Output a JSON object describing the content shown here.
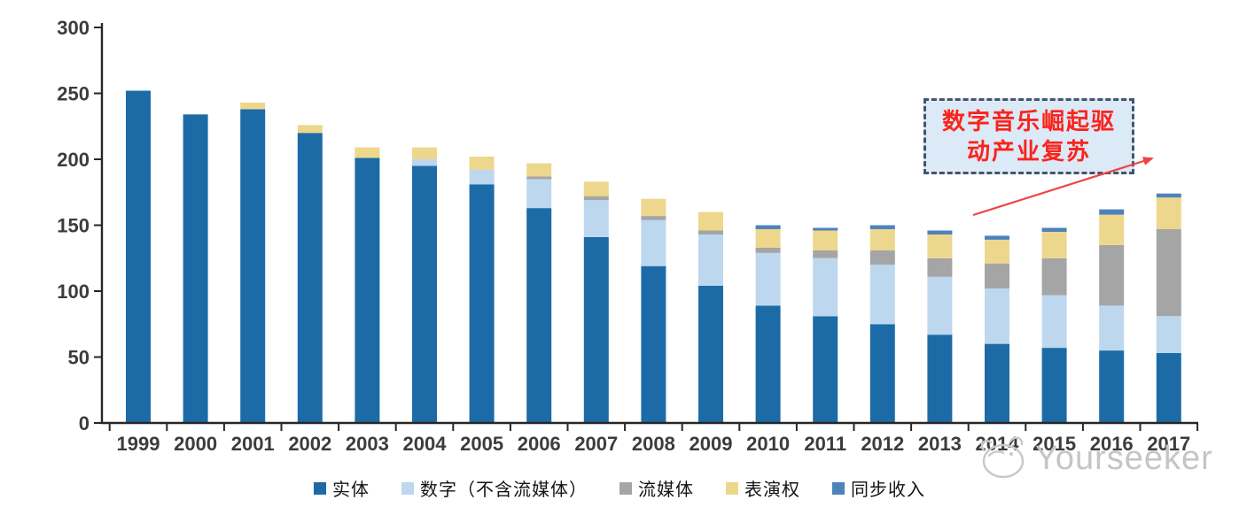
{
  "chart_data": {
    "type": "bar",
    "stacked": true,
    "title": "",
    "xlabel": "",
    "ylabel": "",
    "ylim": [
      0,
      300
    ],
    "yticks": [
      0,
      50,
      100,
      150,
      200,
      250,
      300
    ],
    "grid": false,
    "legend_position": "bottom",
    "categories": [
      "1999",
      "2000",
      "2001",
      "2002",
      "2003",
      "2004",
      "2005",
      "2006",
      "2007",
      "2008",
      "2009",
      "2010",
      "2011",
      "2012",
      "2013",
      "2014",
      "2015",
      "2016",
      "2017"
    ],
    "series": [
      {
        "name": "实体",
        "color": "#1C6BA6",
        "values": [
          252,
          234,
          238,
          220,
          201,
          195,
          181,
          163,
          141,
          119,
          104,
          89,
          81,
          75,
          67,
          60,
          57,
          55,
          53
        ]
      },
      {
        "name": "数字（不含流媒体）",
        "color": "#BDD7EE",
        "values": [
          0,
          0,
          0,
          0,
          0,
          5,
          11,
          22,
          28,
          35,
          39,
          40,
          44,
          45,
          44,
          42,
          40,
          34,
          28
        ]
      },
      {
        "name": "流媒体",
        "color": "#A5A5A5",
        "values": [
          0,
          0,
          0,
          0,
          0,
          0,
          0,
          2,
          3,
          3,
          3,
          4,
          6,
          11,
          14,
          19,
          28,
          46,
          66
        ]
      },
      {
        "name": "表演权",
        "color": "#EDD78C",
        "values": [
          0,
          0,
          5,
          6,
          8,
          9,
          10,
          10,
          11,
          13,
          14,
          14,
          15,
          16,
          18,
          18,
          20,
          23,
          24
        ]
      },
      {
        "name": "同步收入",
        "color": "#4E82BD",
        "values": [
          0,
          0,
          0,
          0,
          0,
          0,
          0,
          0,
          0,
          0,
          0,
          3,
          2,
          3,
          3,
          3,
          3,
          4,
          3
        ]
      }
    ],
    "axis_color": "#262626",
    "tick_label_color": "#3C3C3C"
  },
  "annotation": {
    "line1": "数字音乐崛起驱",
    "line2": "动产业复苏",
    "text_color": "#FB231B",
    "box_fill": "#DCE9F7",
    "box_border": "#44546A",
    "arrow_color": "#EF4444"
  },
  "watermark": {
    "text": "Yourseeker",
    "color": "#c5c5c5",
    "logo": "mascot-face"
  }
}
